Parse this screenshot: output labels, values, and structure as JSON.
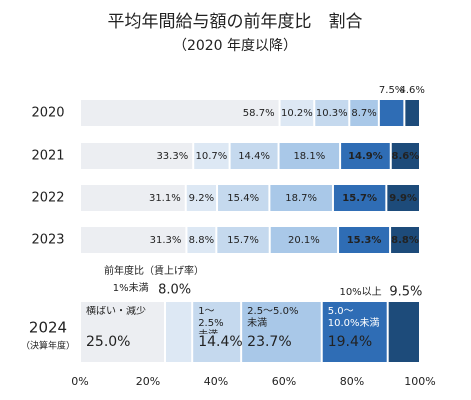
{
  "chart_data": {
    "type": "stacked_bar_horizontal",
    "title": "平均年間給与額の前年度比　割合",
    "subtitle": "（2020 年度以降）",
    "annotation": "前年度比（賃上げ率）",
    "category_note": "（決算年度）",
    "categories": [
      "2020",
      "2021",
      "2022",
      "2023",
      "2024"
    ],
    "xlim": [
      0,
      100
    ],
    "xticks": [
      {
        "value": 0,
        "label": "0%"
      },
      {
        "value": 20,
        "label": "20%"
      },
      {
        "value": 40,
        "label": "40%"
      },
      {
        "value": 60,
        "label": "60%"
      },
      {
        "value": 80,
        "label": "80%"
      },
      {
        "value": 100,
        "label": "100%"
      }
    ],
    "grid": false,
    "series": [
      {
        "name": "横ばい・減少",
        "color": "#eceef2",
        "values": [
          58.7,
          33.3,
          31.1,
          31.3,
          25.0
        ],
        "value_labels": [
          "58.7%",
          "33.3%",
          "31.1%",
          "31.3%",
          "25.0%"
        ]
      },
      {
        "name": "1%未満",
        "color": "#dde8f4",
        "values": [
          10.2,
          10.7,
          9.2,
          8.8,
          8.0
        ],
        "value_labels": [
          "10.2%",
          "10.7%",
          "9.2%",
          "8.8%",
          "8.0%"
        ]
      },
      {
        "name": "1～2.5%\n未満",
        "color": "#c5d9ee",
        "values": [
          10.3,
          14.4,
          15.4,
          15.7,
          14.4
        ],
        "value_labels": [
          "10.3%",
          "14.4%",
          "15.4%",
          "15.7%",
          "14.4%"
        ]
      },
      {
        "name": "2.5～5.0%\n未満",
        "color": "#a9c8e8",
        "values": [
          8.7,
          18.1,
          18.7,
          20.1,
          23.7
        ],
        "value_labels": [
          "8.7%",
          "18.1%",
          "18.7%",
          "20.1%",
          "23.7%"
        ]
      },
      {
        "name": "5.0～\n10.0%未満",
        "color": "#2f6db5",
        "values": [
          7.5,
          14.9,
          15.7,
          15.3,
          19.4
        ],
        "value_labels": [
          "7.5%",
          "14.9%",
          "15.7%",
          "15.3%",
          "19.4%"
        ]
      },
      {
        "name": "10%以上",
        "color": "#1d4b7a",
        "values": [
          4.6,
          8.6,
          9.9,
          8.8,
          9.5
        ],
        "value_labels": [
          "4.6%",
          "8.6%",
          "9.9%",
          "8.8%",
          "9.5%"
        ]
      }
    ]
  }
}
